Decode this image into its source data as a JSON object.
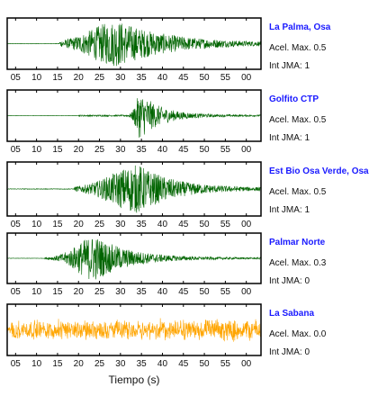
{
  "chart_data": {
    "type": "line",
    "xlabel": "Tiempo (s)",
    "x_tick_labels": [
      "05",
      "10",
      "15",
      "20",
      "25",
      "30",
      "35",
      "40",
      "45",
      "50",
      "55",
      "00"
    ],
    "series": [
      {
        "name": "La Palma, Osa",
        "acel_text": "Acel. Max. 0.5",
        "int_text": "Int JMA: 1",
        "color": "#006400",
        "onset_s": 15.5,
        "peak_s": 29.5,
        "peak_amp": 0.95,
        "rise": 9,
        "decay": 12,
        "noise": 0.04
      },
      {
        "name": "Golfito CTP",
        "acel_text": "Acel. Max. 0.5",
        "int_text": "Int JMA: 1",
        "color": "#006400",
        "onset_s": 20.0,
        "peak_s": 34.8,
        "peak_amp": 0.95,
        "rise": 1.5,
        "decay": 5,
        "noise": 0.03
      },
      {
        "name": "Est Bio Osa Verde, Osa",
        "acel_text": "Acel. Max. 0.5",
        "int_text": "Int JMA: 1",
        "color": "#006400",
        "onset_s": 19.0,
        "peak_s": 34.5,
        "peak_amp": 0.95,
        "rise": 9,
        "decay": 8,
        "noise": 0.05
      },
      {
        "name": "Palmar Norte",
        "acel_text": "Acel. Max. 0.3",
        "int_text": "Int JMA: 0",
        "color": "#006400",
        "onset_s": 12.0,
        "peak_s": 24.0,
        "peak_amp": 0.95,
        "rise": 6,
        "decay": 8,
        "noise": 0.03
      },
      {
        "name": "La Sabana",
        "acel_text": "Acel. Max. 0.0",
        "int_text": "Int JMA: 0",
        "color": "#ffa500",
        "onset_s": 4.0,
        "peak_s": 30.0,
        "peak_amp": 0.35,
        "rise": 100,
        "decay": 100,
        "noise": 0.55
      }
    ],
    "xlim": [
      3.0,
      63.5
    ],
    "grid": false
  }
}
